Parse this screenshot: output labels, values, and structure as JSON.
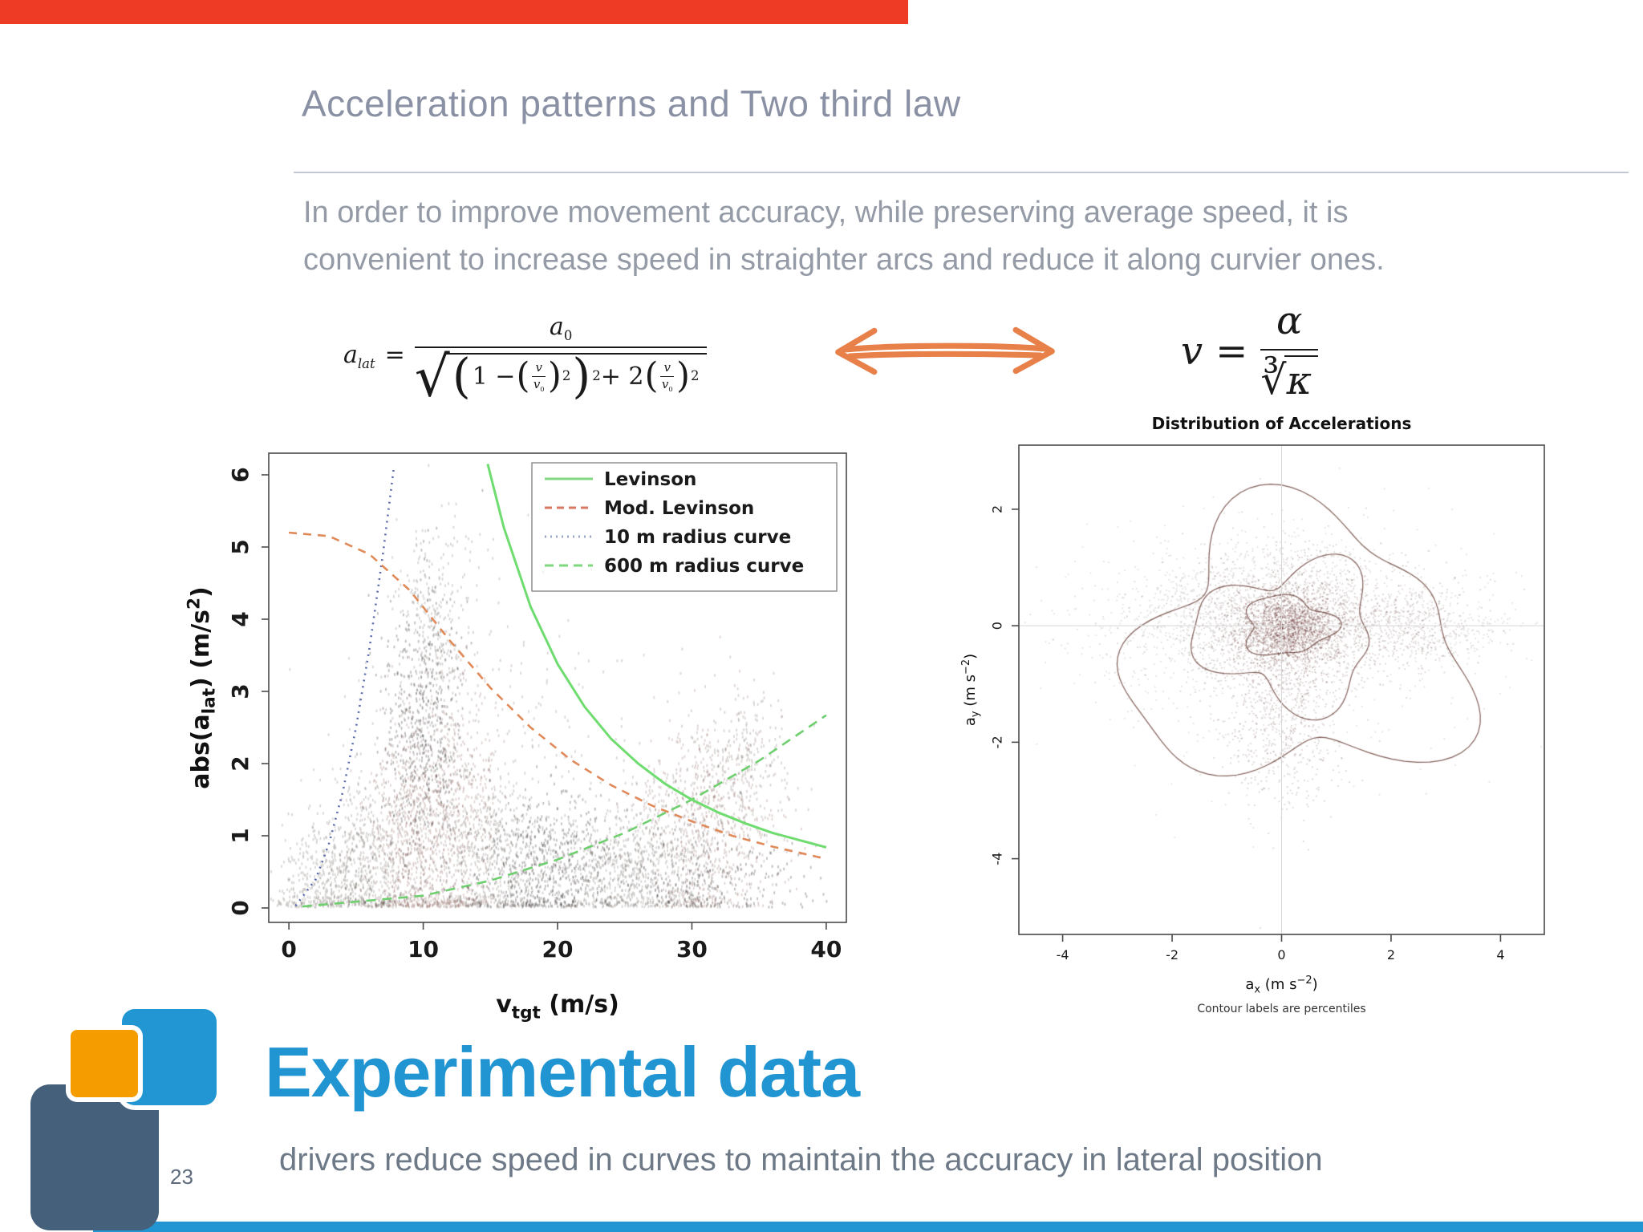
{
  "colors": {
    "top_bar": "#ee3b26",
    "bottom_bar": "#2196d3",
    "accent_blue": "#2095d2",
    "logo_orange": "#f59c00",
    "logo_dark": "#45607a",
    "arrow_orange": "#e8804a"
  },
  "header": {
    "title": "Acceleration patterns and Two third law",
    "body_line1": "In order to improve movement accuracy, while preserving average speed, it is",
    "body_line2": "convenient to increase speed in straighter arcs and reduce it along curvier ones."
  },
  "math": {
    "left": {
      "lhs_base": "a",
      "lhs_sub": "lat",
      "equals": "=",
      "num_base": "a",
      "num_sub": "0",
      "radical": "√",
      "one_minus": "1 −",
      "v": "v",
      "v0_base": "v",
      "v0_sub": "0",
      "sup2": "2",
      "plus2": "+ 2"
    },
    "right": {
      "v": "v",
      "equals": "=",
      "alpha": "α",
      "root": "∛",
      "kappa": "κ"
    }
  },
  "footer": {
    "heading": "Experimental data",
    "subtitle": "drivers reduce speed in curves to maintain the accuracy in lateral position",
    "page_number": "23"
  },
  "chart_data": [
    {
      "type": "scatter",
      "title": "",
      "xlabel_parts": [
        {
          "t": "v"
        },
        {
          "t": "tgt",
          "sub": true
        },
        {
          "t": " (m/s)"
        }
      ],
      "ylabel_parts": [
        {
          "t": "abs(a"
        },
        {
          "t": "lat",
          "sub": true
        },
        {
          "t": ") (m/s"
        },
        {
          "t": "2",
          "sup": true
        },
        {
          "t": ")"
        }
      ],
      "xlim": [
        -1.5,
        41.5
      ],
      "ylim": [
        -0.2,
        6.3
      ],
      "xticks": [
        0,
        10,
        20,
        30,
        40
      ],
      "yticks": [
        0,
        1,
        2,
        3,
        4,
        5,
        6
      ],
      "grid": false,
      "clamp_y0": true,
      "legend": {
        "position": "top-right",
        "items": [
          {
            "label": "Levinson",
            "color": "#82d882",
            "dash": "none"
          },
          {
            "label": "Mod. Levinson",
            "color": "#d97862",
            "dash": "9 6"
          },
          {
            "label": "10 m radius curve",
            "color": "#9aa8c8",
            "dash": "2 5"
          },
          {
            "label": "600 m radius curve",
            "color": "#7cd87c",
            "dash": "11 7"
          }
        ]
      },
      "curves": [
        {
          "name": "10 m radius curve",
          "color": "#5a6cae",
          "width": 2.6,
          "dash": "2 6",
          "points": [
            [
              0.5,
              0.03
            ],
            [
              2,
              0.4
            ],
            [
              3,
              0.9
            ],
            [
              4,
              1.6
            ],
            [
              5,
              2.5
            ],
            [
              6,
              3.6
            ],
            [
              7,
              4.9
            ],
            [
              7.8,
              6.08
            ]
          ]
        },
        {
          "name": "600 m radius curve",
          "color": "#6ecf6e",
          "width": 2.6,
          "dash": "12 8",
          "points": [
            [
              1,
              0.02
            ],
            [
              10,
              0.17
            ],
            [
              15,
              0.38
            ],
            [
              20,
              0.67
            ],
            [
              25,
              1.04
            ],
            [
              30,
              1.5
            ],
            [
              35,
              2.04
            ],
            [
              40,
              2.67
            ]
          ]
        },
        {
          "name": "Levinson",
          "color": "#6fdc6f",
          "width": 3,
          "dash": "none",
          "points": [
            [
              14.8,
              6.15
            ],
            [
              16,
              5.27
            ],
            [
              18,
              4.17
            ],
            [
              20,
              3.38
            ],
            [
              22,
              2.79
            ],
            [
              24,
              2.34
            ],
            [
              26,
              2.0
            ],
            [
              28,
              1.72
            ],
            [
              30,
              1.5
            ],
            [
              32,
              1.32
            ],
            [
              34,
              1.17
            ],
            [
              36,
              1.04
            ],
            [
              38,
              0.94
            ],
            [
              40,
              0.84
            ]
          ]
        },
        {
          "name": "Mod. Levinson",
          "color": "#e08a5a",
          "width": 2.6,
          "dash": "10 8",
          "points": [
            [
              0,
              5.2
            ],
            [
              3,
              5.15
            ],
            [
              6,
              4.9
            ],
            [
              9,
              4.4
            ],
            [
              12,
              3.7
            ],
            [
              15,
              3.05
            ],
            [
              18,
              2.5
            ],
            [
              21,
              2.05
            ],
            [
              24,
              1.7
            ],
            [
              27,
              1.42
            ],
            [
              30,
              1.2
            ],
            [
              33,
              1.0
            ],
            [
              36,
              0.85
            ],
            [
              40,
              0.68
            ]
          ]
        }
      ],
      "scatter": {
        "seed": 42,
        "point": [
          1.7,
          3.4
        ],
        "colors": [
          "rgba(48,38,32,0.2)",
          "rgba(105,52,42,0.22)",
          "rgba(30,24,22,0.3)"
        ],
        "clusters": [
          {
            "cx": 2.5,
            "cy": 0.35,
            "sx": 1.8,
            "sy": 0.4,
            "n": 450
          },
          {
            "cx": 6,
            "cy": 0.6,
            "sx": 1.5,
            "sy": 0.6,
            "n": 450
          },
          {
            "cx": 9,
            "cy": 1.0,
            "sx": 1.6,
            "sy": 0.9,
            "n": 750,
            "tint": 1
          },
          {
            "cx": 9.8,
            "cy": 2.4,
            "sx": 1.5,
            "sy": 1.0,
            "n": 560,
            "tint": 2
          },
          {
            "cx": 10.8,
            "cy": 3.9,
            "sx": 1.3,
            "sy": 0.8,
            "n": 280
          },
          {
            "cx": 12.5,
            "cy": 1.2,
            "sx": 1.7,
            "sy": 1.0,
            "n": 560,
            "tint": 1
          },
          {
            "cx": 15,
            "cy": 0.7,
            "sx": 2.2,
            "sy": 0.65,
            "n": 540
          },
          {
            "cx": 19,
            "cy": 0.55,
            "sx": 2.8,
            "sy": 0.5,
            "n": 540,
            "tint": 2
          },
          {
            "cx": 23.5,
            "cy": 0.5,
            "sx": 2.6,
            "sy": 0.45,
            "n": 450
          },
          {
            "cx": 28,
            "cy": 0.7,
            "sx": 2.2,
            "sy": 0.6,
            "n": 450
          },
          {
            "cx": 31.5,
            "cy": 1.1,
            "sx": 2.4,
            "sy": 0.8,
            "n": 650,
            "tint": 1
          },
          {
            "cx": 33.5,
            "cy": 1.9,
            "sx": 1.8,
            "sy": 0.5,
            "n": 260
          },
          {
            "cx": 14,
            "cy": 2.2,
            "sx": 6.0,
            "sy": 1.2,
            "n": 280
          },
          {
            "cx": 30,
            "cy": 0.4,
            "sx": 5.0,
            "sy": 0.35,
            "n": 320,
            "tint": 2
          }
        ]
      }
    },
    {
      "type": "scatter",
      "title": "Distribution of Accelerations",
      "xlabel_parts": [
        {
          "t": "a"
        },
        {
          "t": "x",
          "sub": true
        },
        {
          "t": " (m s"
        },
        {
          "t": "−2",
          "sup": true
        },
        {
          "t": ")"
        }
      ],
      "ylabel_parts": [
        {
          "t": "a"
        },
        {
          "t": "y",
          "sub": true
        },
        {
          "t": " (m s"
        },
        {
          "t": "−2",
          "sup": true
        },
        {
          "t": ")"
        }
      ],
      "caption": "Contour labels are percentiles",
      "xlim": [
        -4.8,
        4.8
      ],
      "ylim": [
        -5.3,
        3.1
      ],
      "xticks": [
        -4,
        -2,
        0,
        2,
        4
      ],
      "yticks": [
        -4,
        -2,
        0,
        2
      ],
      "zero_lines": true,
      "scatter": {
        "seed": 7,
        "point": [
          1.7,
          1.7
        ],
        "colors": [
          "rgba(70,50,45,0.16)",
          "rgba(80,42,36,0.22)",
          "rgba(85,28,22,0.3)"
        ],
        "clusters": [
          {
            "cx": 0,
            "cy": 0,
            "sx": 0.85,
            "sy": 0.6,
            "n": 1500,
            "tint": 1
          },
          {
            "cx": 0.15,
            "cy": 0,
            "sx": 0.4,
            "sy": 0.3,
            "n": 1100,
            "tint": 2
          },
          {
            "cx": 1.6,
            "cy": 0.05,
            "sx": 1.0,
            "sy": 0.4,
            "n": 700,
            "tint": 1
          },
          {
            "cx": 3.0,
            "cy": 0,
            "sx": 0.7,
            "sy": 0.3,
            "n": 280
          },
          {
            "cx": 0,
            "cy": -1.5,
            "sx": 0.5,
            "sy": 0.8,
            "n": 650,
            "tint": 1
          },
          {
            "cx": -1.4,
            "cy": 0.15,
            "sx": 0.8,
            "sy": 0.5,
            "n": 430
          },
          {
            "cx": 0.3,
            "cy": 0.8,
            "sx": 1.3,
            "sy": 0.45,
            "n": 400
          },
          {
            "cx": 0,
            "cy": -0.4,
            "sx": 2.0,
            "sy": 1.2,
            "n": 430
          },
          {
            "cx": -2.4,
            "cy": 0,
            "sx": 0.8,
            "sy": 0.5,
            "n": 170
          }
        ]
      },
      "contours": [
        {
          "cx": 0.3,
          "cy": -0.4,
          "rx": 3.0,
          "ry": 2.2,
          "w": 0.2,
          "seed": 3
        },
        {
          "cx": 0.15,
          "cy": -0.15,
          "rx": 1.6,
          "ry": 1.15,
          "w": 0.22,
          "seed": 5
        },
        {
          "cx": 0.1,
          "cy": 0,
          "rx": 0.8,
          "ry": 0.5,
          "w": 0.16,
          "seed": 8
        }
      ]
    }
  ]
}
